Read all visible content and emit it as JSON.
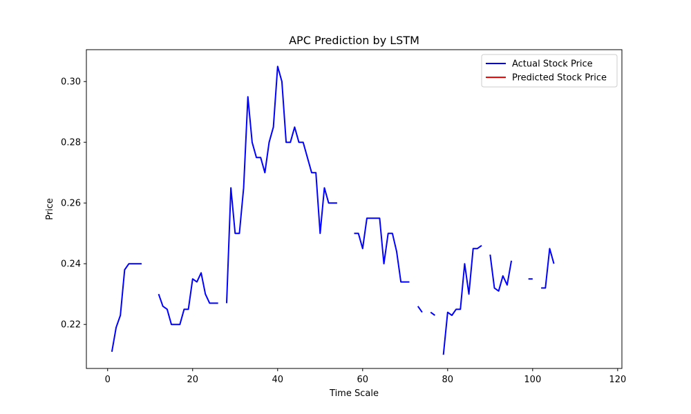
{
  "chart_data": {
    "type": "line",
    "title": "APC Prediction by LSTM",
    "xlabel": "Time Scale",
    "ylabel": "Price",
    "xlim": [
      -5,
      121
    ],
    "ylim": [
      0.2055,
      0.3105
    ],
    "x_ticks": [
      0,
      20,
      40,
      60,
      80,
      100,
      120
    ],
    "y_ticks": [
      0.22,
      0.24,
      0.26,
      0.28,
      0.3
    ],
    "x_tick_labels": [
      "0",
      "20",
      "40",
      "60",
      "80",
      "100",
      "120"
    ],
    "y_tick_labels": [
      "0.22",
      "0.24",
      "0.26",
      "0.28",
      "0.30"
    ],
    "grid": false,
    "legend_position": "upper right",
    "series": [
      {
        "name": "Actual Stock Price",
        "color": "#0000ff",
        "x": [
          1,
          2,
          3,
          4,
          5,
          6,
          7,
          8,
          9,
          10,
          11,
          12,
          13,
          14,
          15,
          16,
          17,
          18,
          19,
          20,
          21,
          22,
          23,
          24,
          25,
          26,
          27,
          28,
          29,
          30,
          31,
          32,
          33,
          34,
          35,
          36,
          37,
          38,
          39,
          40,
          41,
          42,
          43,
          44,
          45,
          46,
          47,
          48,
          49,
          50,
          51,
          52,
          53,
          54,
          55,
          56,
          57,
          58,
          59,
          60,
          61,
          62,
          63,
          64,
          65,
          66,
          67,
          68,
          69,
          70,
          71,
          72,
          73,
          74,
          75,
          76,
          77,
          78,
          79,
          80,
          81,
          82,
          83,
          84,
          85,
          86,
          87,
          88,
          89,
          90,
          91,
          92,
          93,
          94,
          95,
          96,
          97,
          98,
          99,
          100,
          101,
          102,
          103,
          104,
          105
        ],
        "values": [
          0.211,
          0.219,
          0.223,
          0.238,
          0.24,
          0.24,
          0.24,
          0.24,
          null,
          null,
          null,
          0.23,
          0.226,
          0.225,
          0.22,
          0.22,
          0.22,
          0.225,
          0.225,
          0.235,
          0.234,
          0.237,
          0.23,
          0.227,
          0.227,
          0.227,
          null,
          0.227,
          0.265,
          0.25,
          0.25,
          0.265,
          0.295,
          0.28,
          0.275,
          0.275,
          0.27,
          0.28,
          0.285,
          0.305,
          0.3,
          0.28,
          0.28,
          0.285,
          0.28,
          0.28,
          0.275,
          0.27,
          0.27,
          0.25,
          0.265,
          0.26,
          0.26,
          0.26,
          null,
          null,
          null,
          0.25,
          0.25,
          0.245,
          0.255,
          0.255,
          0.255,
          0.255,
          0.24,
          0.25,
          0.25,
          0.244,
          0.234,
          0.234,
          0.234,
          null,
          0.226,
          0.224,
          null,
          0.224,
          0.223,
          null,
          0.21,
          0.224,
          0.223,
          0.225,
          0.225,
          0.24,
          0.23,
          0.245,
          0.245,
          0.246,
          null,
          0.243,
          0.232,
          0.231,
          0.236,
          0.233,
          0.241,
          null,
          null,
          null,
          0.235,
          0.235,
          null,
          0.232,
          0.232,
          0.245,
          0.24
        ]
      },
      {
        "name": "Predicted Stock Price",
        "color": "#ff0000",
        "x": [],
        "values": []
      }
    ]
  }
}
